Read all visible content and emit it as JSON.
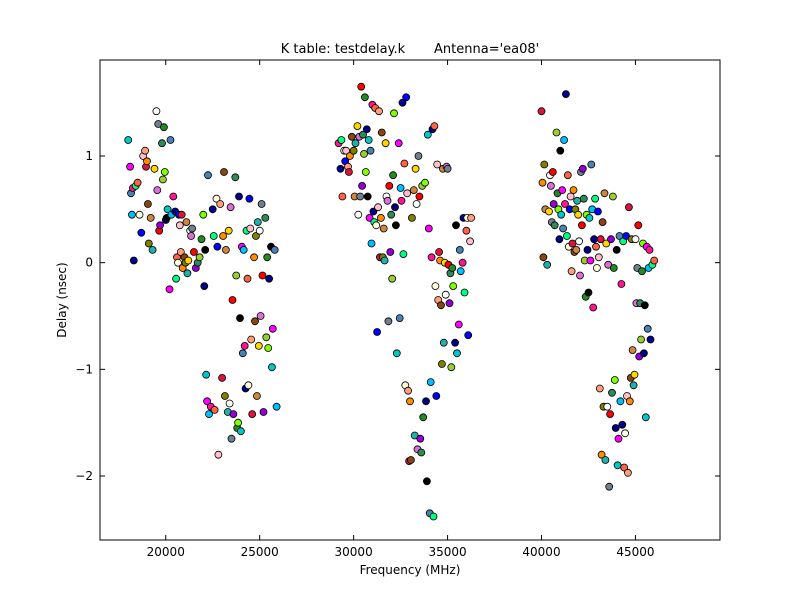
{
  "chart_data": {
    "type": "scatter",
    "title": "K table: testdelay.k       Antenna='ea08'",
    "xlabel": "Frequency (MHz)",
    "ylabel": "Delay (nsec)",
    "xlim": [
      16500,
      49500
    ],
    "ylim": [
      -2.6,
      1.9
    ],
    "xticks": [
      20000,
      25000,
      30000,
      35000,
      40000,
      45000
    ],
    "yticks": [
      1,
      0,
      -1,
      -2
    ],
    "xtick_labels": [
      "20000",
      "25000",
      "30000",
      "35000",
      "40000",
      "45000"
    ],
    "ytick_labels": [
      "1",
      "0",
      "−1",
      "−2"
    ],
    "grid": false,
    "legend": "none",
    "marker_colors": [
      "#00c8c8",
      "#ff8c00",
      "#228b22",
      "#0000ff",
      "#ff0000",
      "#00008b",
      "#ffd700",
      "#ff00ff",
      "#8b4513",
      "#7fff00",
      "#ffc0cb",
      "#9400d3",
      "#00ff7f",
      "#ffffff",
      "#4682b4",
      "#808000",
      "#000080",
      "#ffa07a",
      "#2e8b57",
      "#ff6347",
      "#da70d6",
      "#00bfff",
      "#cd853f",
      "#000000",
      "#dc143c",
      "#9acd32",
      "#ffffe0",
      "#708090",
      "#ff1493",
      "#20b2aa"
    ],
    "points": [
      [
        18000,
        1.15
      ],
      [
        18100,
        0.9
      ],
      [
        18150,
        0.65
      ],
      [
        18200,
        0.45
      ],
      [
        18250,
        0.7
      ],
      [
        18300,
        0.02
      ],
      [
        18400,
        0.72
      ],
      [
        18500,
        0.75
      ],
      [
        18600,
        0.45
      ],
      [
        18700,
        0.28
      ],
      [
        18800,
        1.0
      ],
      [
        18900,
        1.05
      ],
      [
        18950,
        0.9
      ],
      [
        19000,
        0.95
      ],
      [
        19050,
        0.55
      ],
      [
        19100,
        0.18
      ],
      [
        19200,
        0.42
      ],
      [
        19300,
        0.12
      ],
      [
        19400,
        0.88
      ],
      [
        19500,
        1.42
      ],
      [
        19550,
        0.68
      ],
      [
        19600,
        1.3
      ],
      [
        19650,
        0.3
      ],
      [
        19700,
        0.35
      ],
      [
        19800,
        1.12
      ],
      [
        19850,
        0.78
      ],
      [
        19900,
        1.27
      ],
      [
        19950,
        0.85
      ],
      [
        20000,
        0.4
      ],
      [
        20050,
        0.42
      ],
      [
        20100,
        0.5
      ],
      [
        20200,
        -0.25
      ],
      [
        20250,
        1.15
      ],
      [
        20300,
        0.45
      ],
      [
        20400,
        0.62
      ],
      [
        20500,
        0.48
      ],
      [
        20550,
        -0.15
      ],
      [
        20600,
        0.05
      ],
      [
        20650,
        0.0
      ],
      [
        20700,
        0.45
      ],
      [
        20750,
        0.35
      ],
      [
        20800,
        0.1
      ],
      [
        20850,
        0.45
      ],
      [
        20900,
        -0.05
      ],
      [
        21000,
        0.05
      ],
      [
        21050,
        0.0
      ],
      [
        21100,
        0.38
      ],
      [
        21150,
        -0.1
      ],
      [
        21200,
        0.02
      ],
      [
        21300,
        0.3
      ],
      [
        21350,
        0.25
      ],
      [
        21400,
        0.32
      ],
      [
        21500,
        0.1
      ],
      [
        21600,
        -0.05
      ],
      [
        21700,
        0.0
      ],
      [
        21800,
        0.05
      ],
      [
        21900,
        0.22
      ],
      [
        22000,
        0.45
      ],
      [
        22050,
        -0.22
      ],
      [
        22100,
        0.12
      ],
      [
        22150,
        -1.05
      ],
      [
        22200,
        -1.3
      ],
      [
        22250,
        0.82
      ],
      [
        22300,
        -1.42
      ],
      [
        22400,
        -1.35
      ],
      [
        22500,
        0.5
      ],
      [
        22550,
        0.25
      ],
      [
        22600,
        -1.38
      ],
      [
        22700,
        0.6
      ],
      [
        22750,
        0.15
      ],
      [
        22800,
        -1.8
      ],
      [
        22900,
        0.55
      ],
      [
        23000,
        -1.08
      ],
      [
        23050,
        0.25
      ],
      [
        23100,
        0.85
      ],
      [
        23150,
        -1.25
      ],
      [
        23200,
        0.12
      ],
      [
        23300,
        -1.4
      ],
      [
        23350,
        0.3
      ],
      [
        23400,
        -1.32
      ],
      [
        23450,
        0.52
      ],
      [
        23500,
        -1.65
      ],
      [
        23550,
        -0.35
      ],
      [
        23600,
        -1.42
      ],
      [
        23700,
        0.8
      ],
      [
        23750,
        -0.12
      ],
      [
        23800,
        -1.55
      ],
      [
        23850,
        -1.5
      ],
      [
        23900,
        0.62
      ],
      [
        23950,
        -0.52
      ],
      [
        24000,
        -1.58
      ],
      [
        24050,
        0.15
      ],
      [
        24100,
        -0.85
      ],
      [
        24150,
        0.12
      ],
      [
        24200,
        -0.78
      ],
      [
        24250,
        -1.18
      ],
      [
        24300,
        0.3
      ],
      [
        24350,
        -0.15
      ],
      [
        24400,
        -1.15
      ],
      [
        24450,
        0.6
      ],
      [
        24500,
        0.32
      ],
      [
        24550,
        -0.72
      ],
      [
        24600,
        -1.42
      ],
      [
        24700,
        0.05
      ],
      [
        24750,
        -0.55
      ],
      [
        24800,
        0.25
      ],
      [
        24850,
        -1.25
      ],
      [
        24900,
        0.38
      ],
      [
        24950,
        -0.78
      ],
      [
        25000,
        0.3
      ],
      [
        25050,
        -0.5
      ],
      [
        25100,
        0.55
      ],
      [
        25150,
        -0.12
      ],
      [
        25200,
        -1.4
      ],
      [
        25300,
        0.42
      ],
      [
        25350,
        -0.7
      ],
      [
        25400,
        0.05
      ],
      [
        25450,
        -0.8
      ],
      [
        25500,
        -0.15
      ],
      [
        25600,
        0.15
      ],
      [
        25650,
        -0.98
      ],
      [
        25700,
        -0.62
      ],
      [
        25800,
        0.12
      ],
      [
        25900,
        -1.35
      ],
      [
        29200,
        1.12
      ],
      [
        29300,
        0.88
      ],
      [
        29350,
        1.15
      ],
      [
        29400,
        0.62
      ],
      [
        29500,
        1.05
      ],
      [
        29550,
        0.95
      ],
      [
        29600,
        1.05
      ],
      [
        29700,
        0.9
      ],
      [
        29750,
        0.85
      ],
      [
        29800,
        1.0
      ],
      [
        29900,
        1.18
      ],
      [
        30000,
        1.05
      ],
      [
        30050,
        0.62
      ],
      [
        30100,
        1.12
      ],
      [
        30200,
        1.28
      ],
      [
        30250,
        0.45
      ],
      [
        30300,
        1.18
      ],
      [
        30350,
        0.62
      ],
      [
        30400,
        1.65
      ],
      [
        30450,
        0.72
      ],
      [
        30500,
        1.2
      ],
      [
        30550,
        1.02
      ],
      [
        30600,
        1.55
      ],
      [
        30650,
        0.85
      ],
      [
        30700,
        1.25
      ],
      [
        30750,
        0.62
      ],
      [
        30800,
        1.15
      ],
      [
        30850,
        0.42
      ],
      [
        30900,
        1.05
      ],
      [
        30950,
        0.18
      ],
      [
        31000,
        1.48
      ],
      [
        31050,
        0.48
      ],
      [
        31100,
        0.38
      ],
      [
        31150,
        1.45
      ],
      [
        31200,
        0.35
      ],
      [
        31250,
        -0.65
      ],
      [
        31300,
        0.52
      ],
      [
        31350,
        1.42
      ],
      [
        31400,
        0.05
      ],
      [
        31450,
        0.42
      ],
      [
        31500,
        1.22
      ],
      [
        31550,
        0.05
      ],
      [
        31600,
        0.32
      ],
      [
        31650,
        0.02
      ],
      [
        31700,
        1.12
      ],
      [
        31750,
        0.62
      ],
      [
        31800,
        0.58
      ],
      [
        31850,
        -0.55
      ],
      [
        31900,
        0.72
      ],
      [
        31950,
        0.1
      ],
      [
        32000,
        0.45
      ],
      [
        32050,
        -0.15
      ],
      [
        32100,
        0.82
      ],
      [
        32150,
        1.4
      ],
      [
        32200,
        0.52
      ],
      [
        32250,
        0.35
      ],
      [
        32300,
        -0.85
      ],
      [
        32400,
        1.12
      ],
      [
        32450,
        -0.52
      ],
      [
        32500,
        0.7
      ],
      [
        32550,
        0.58
      ],
      [
        32600,
        1.5
      ],
      [
        32650,
        0.08
      ],
      [
        32700,
        0.93
      ],
      [
        32750,
        -1.15
      ],
      [
        32800,
        1.55
      ],
      [
        32850,
        0.65
      ],
      [
        32900,
        -1.2
      ],
      [
        32950,
        -1.86
      ],
      [
        33000,
        -1.3
      ],
      [
        33050,
        -1.85
      ],
      [
        33100,
        0.42
      ],
      [
        33200,
        0.68
      ],
      [
        33250,
        -1.62
      ],
      [
        33300,
        0.88
      ],
      [
        33350,
        0.55
      ],
      [
        33400,
        -1.75
      ],
      [
        33450,
        1.0
      ],
      [
        33500,
        0.62
      ],
      [
        33550,
        -1.65
      ],
      [
        33600,
        -1.78
      ],
      [
        33650,
        0.72
      ],
      [
        33700,
        -1.45
      ],
      [
        33800,
        0.75
      ],
      [
        33850,
        -1.3
      ],
      [
        33900,
        -2.05
      ],
      [
        33950,
        1.2
      ],
      [
        34000,
        0.32
      ],
      [
        34050,
        -2.35
      ],
      [
        34100,
        -1.12
      ],
      [
        34150,
        0.05
      ],
      [
        34200,
        1.25
      ],
      [
        34250,
        -2.38
      ],
      [
        34300,
        1.28
      ],
      [
        34350,
        -0.22
      ],
      [
        34400,
        -1.25
      ],
      [
        34450,
        0.92
      ],
      [
        34500,
        -0.35
      ],
      [
        34550,
        0.1
      ],
      [
        34600,
        0.02
      ],
      [
        34650,
        -0.4
      ],
      [
        34700,
        -0.95
      ],
      [
        34750,
        0.88
      ],
      [
        34800,
        -0.75
      ],
      [
        34850,
        0.0
      ],
      [
        34900,
        -0.3
      ],
      [
        34950,
        0.9
      ],
      [
        35000,
        0.88
      ],
      [
        35050,
        -0.02
      ],
      [
        35100,
        -0.38
      ],
      [
        35150,
        -0.1
      ],
      [
        35200,
        -0.98
      ],
      [
        35250,
        -0.05
      ],
      [
        35300,
        -0.22
      ],
      [
        35400,
        -0.75
      ],
      [
        35450,
        0.35
      ],
      [
        35500,
        -0.85
      ],
      [
        35600,
        -0.58
      ],
      [
        35650,
        0.12
      ],
      [
        35700,
        -0.08
      ],
      [
        35800,
        0.0
      ],
      [
        35850,
        0.42
      ],
      [
        35900,
        -0.28
      ],
      [
        36000,
        0.3
      ],
      [
        36050,
        0.42
      ],
      [
        36100,
        -0.68
      ],
      [
        36200,
        0.2
      ],
      [
        36250,
        0.42
      ],
      [
        40000,
        1.42
      ],
      [
        40050,
        0.75
      ],
      [
        40100,
        0.05
      ],
      [
        40150,
        0.92
      ],
      [
        40200,
        0.5
      ],
      [
        40300,
        -0.02
      ],
      [
        40400,
        0.48
      ],
      [
        40450,
        0.82
      ],
      [
        40500,
        0.72
      ],
      [
        40550,
        0.38
      ],
      [
        40600,
        0.85
      ],
      [
        40650,
        0.55
      ],
      [
        40700,
        0.35
      ],
      [
        40800,
        1.22
      ],
      [
        40850,
        0.65
      ],
      [
        40900,
        0.5
      ],
      [
        40950,
        0.22
      ],
      [
        41000,
        1.05
      ],
      [
        41050,
        0.45
      ],
      [
        41100,
        0.68
      ],
      [
        41150,
        0.32
      ],
      [
        41200,
        1.15
      ],
      [
        41250,
        0.55
      ],
      [
        41300,
        1.58
      ],
      [
        41350,
        0.25
      ],
      [
        41400,
        0.82
      ],
      [
        41450,
        0.15
      ],
      [
        41500,
        0.5
      ],
      [
        41550,
        0.62
      ],
      [
        41600,
        -0.08
      ],
      [
        41650,
        0.18
      ],
      [
        41700,
        0.68
      ],
      [
        41750,
        0.1
      ],
      [
        41800,
        0.5
      ],
      [
        41850,
        0.12
      ],
      [
        41900,
        0.58
      ],
      [
        41950,
        0.45
      ],
      [
        42000,
        0.2
      ],
      [
        42050,
        -0.12
      ],
      [
        42100,
        0.85
      ],
      [
        42150,
        0.35
      ],
      [
        42200,
        0.88
      ],
      [
        42250,
        0.6
      ],
      [
        42300,
        0.02
      ],
      [
        42350,
        -0.32
      ],
      [
        42400,
        0.45
      ],
      [
        42450,
        0.12
      ],
      [
        42500,
        -0.28
      ],
      [
        42550,
        0.42
      ],
      [
        42600,
        0.02
      ],
      [
        42650,
        0.92
      ],
      [
        42700,
        0.5
      ],
      [
        42750,
        -0.42
      ],
      [
        42800,
        0.22
      ],
      [
        42850,
        0.6
      ],
      [
        42900,
        0.15
      ],
      [
        42950,
        -0.05
      ],
      [
        43000,
        0.48
      ],
      [
        43050,
        0.05
      ],
      [
        43100,
        -1.18
      ],
      [
        43150,
        0.22
      ],
      [
        43200,
        -1.8
      ],
      [
        43250,
        0.38
      ],
      [
        43300,
        -1.35
      ],
      [
        43350,
        0.65
      ],
      [
        43400,
        -1.85
      ],
      [
        43450,
        0.18
      ],
      [
        43500,
        -1.35
      ],
      [
        43550,
        -0.02
      ],
      [
        43600,
        -2.1
      ],
      [
        43650,
        -1.42
      ],
      [
        43700,
        0.22
      ],
      [
        43750,
        -1.22
      ],
      [
        43800,
        0.62
      ],
      [
        43850,
        -0.05
      ],
      [
        43900,
        -1.1
      ],
      [
        43950,
        -1.55
      ],
      [
        44000,
        0.12
      ],
      [
        44050,
        -1.9
      ],
      [
        44100,
        -1.65
      ],
      [
        44150,
        0.25
      ],
      [
        44200,
        -1.3
      ],
      [
        44250,
        -0.2
      ],
      [
        44300,
        -1.52
      ],
      [
        44350,
        0.2
      ],
      [
        44400,
        -1.92
      ],
      [
        44450,
        -1.6
      ],
      [
        44500,
        0.25
      ],
      [
        44550,
        -1.25
      ],
      [
        44600,
        -1.97
      ],
      [
        44650,
        0.52
      ],
      [
        44700,
        -1.3
      ],
      [
        44750,
        -1.08
      ],
      [
        44800,
        0.22
      ],
      [
        44850,
        -0.82
      ],
      [
        44900,
        -1.15
      ],
      [
        44950,
        -1.05
      ],
      [
        45000,
        0.22
      ],
      [
        45050,
        -0.38
      ],
      [
        45100,
        -0.05
      ],
      [
        45150,
        0.35
      ],
      [
        45200,
        -0.88
      ],
      [
        45250,
        -0.38
      ],
      [
        45300,
        -0.72
      ],
      [
        45350,
        -0.08
      ],
      [
        45400,
        0.18
      ],
      [
        45450,
        -0.85
      ],
      [
        45500,
        -0.4
      ],
      [
        45550,
        -1.45
      ],
      [
        45600,
        0.15
      ],
      [
        45650,
        -0.62
      ],
      [
        45700,
        -0.05
      ],
      [
        45750,
        0.12
      ],
      [
        45800,
        -0.72
      ],
      [
        45900,
        -0.02
      ],
      [
        46000,
        0.02
      ]
    ]
  }
}
